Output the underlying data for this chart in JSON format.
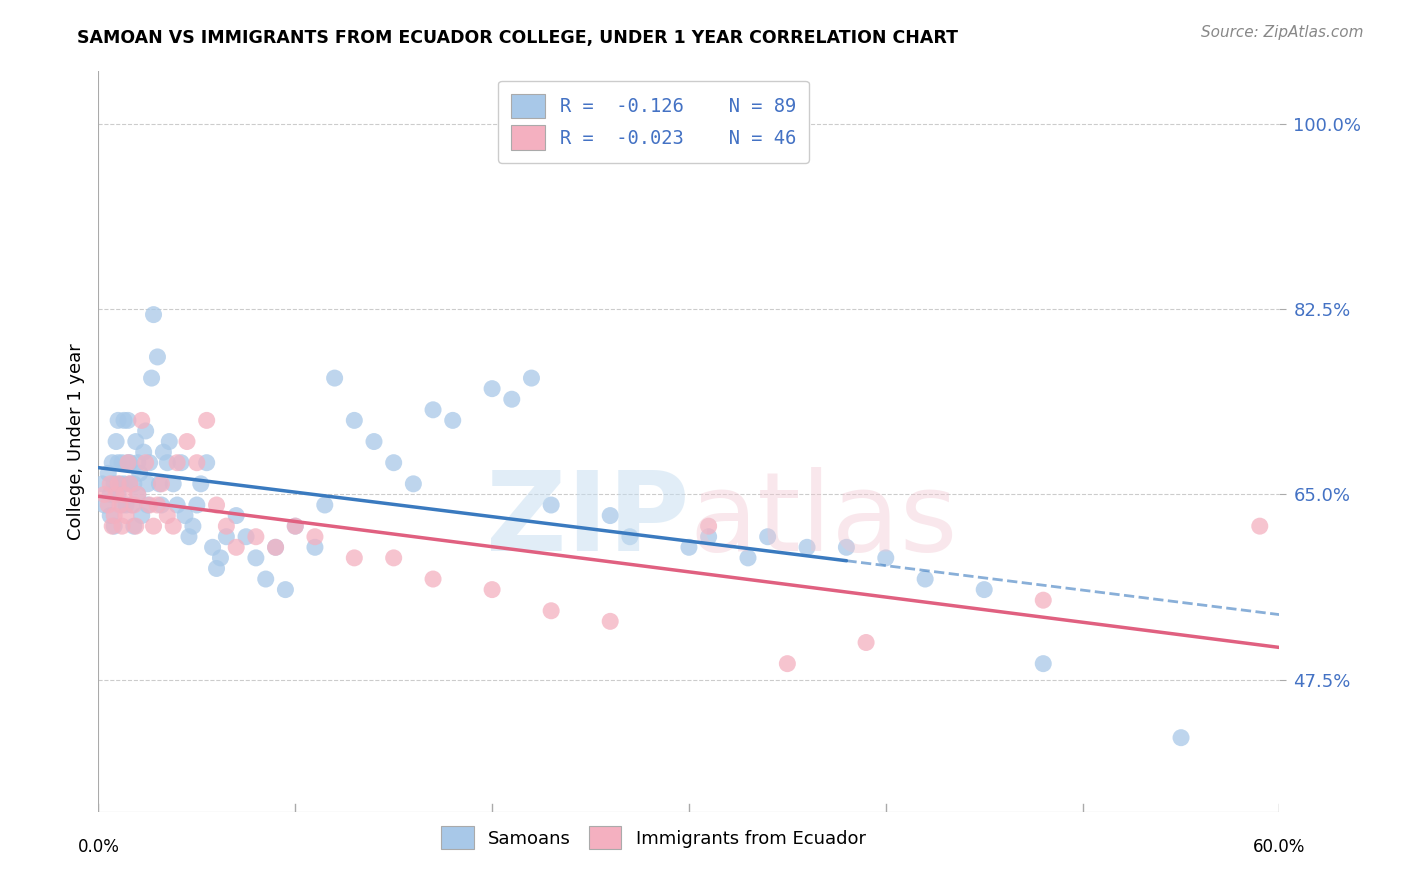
{
  "title": "SAMOAN VS IMMIGRANTS FROM ECUADOR COLLEGE, UNDER 1 YEAR CORRELATION CHART",
  "source": "Source: ZipAtlas.com",
  "ylabel": "College, Under 1 year",
  "xlim": [
    0.0,
    0.6
  ],
  "ylim": [
    0.35,
    1.05
  ],
  "ytick_vals": [
    0.475,
    0.65,
    0.825,
    1.0
  ],
  "ytick_labels": [
    "47.5%",
    "65.0%",
    "82.5%",
    "100.0%"
  ],
  "xtick_left_label": "0.0%",
  "xtick_right_label": "60.0%",
  "blue_scatter_color": "#a8c8e8",
  "pink_scatter_color": "#f4b0c0",
  "blue_line_color": "#3a7abf",
  "pink_line_color": "#e06080",
  "grid_color": "#cccccc",
  "right_label_color": "#4472c4",
  "legend_r1": "R =  -0.126    N = 89",
  "legend_r2": "R =  -0.023    N = 46",
  "bottom_legend1": "Samoans",
  "bottom_legend2": "Immigrants from Ecuador",
  "samoan_x": [
    0.002,
    0.003,
    0.005,
    0.006,
    0.006,
    0.007,
    0.008,
    0.008,
    0.009,
    0.01,
    0.01,
    0.01,
    0.011,
    0.012,
    0.012,
    0.013,
    0.013,
    0.014,
    0.015,
    0.015,
    0.016,
    0.016,
    0.017,
    0.018,
    0.018,
    0.019,
    0.02,
    0.02,
    0.021,
    0.022,
    0.023,
    0.024,
    0.025,
    0.025,
    0.026,
    0.027,
    0.028,
    0.03,
    0.031,
    0.032,
    0.033,
    0.035,
    0.036,
    0.038,
    0.04,
    0.042,
    0.044,
    0.046,
    0.048,
    0.05,
    0.052,
    0.055,
    0.058,
    0.06,
    0.062,
    0.065,
    0.07,
    0.075,
    0.08,
    0.085,
    0.09,
    0.095,
    0.1,
    0.11,
    0.115,
    0.12,
    0.13,
    0.14,
    0.15,
    0.16,
    0.17,
    0.18,
    0.2,
    0.21,
    0.22,
    0.23,
    0.26,
    0.27,
    0.3,
    0.31,
    0.33,
    0.34,
    0.36,
    0.38,
    0.4,
    0.42,
    0.45,
    0.48,
    0.55
  ],
  "samoan_y": [
    0.66,
    0.64,
    0.67,
    0.65,
    0.63,
    0.68,
    0.66,
    0.62,
    0.7,
    0.68,
    0.65,
    0.72,
    0.66,
    0.64,
    0.68,
    0.72,
    0.66,
    0.64,
    0.68,
    0.72,
    0.66,
    0.68,
    0.64,
    0.62,
    0.66,
    0.7,
    0.68,
    0.65,
    0.67,
    0.63,
    0.69,
    0.71,
    0.66,
    0.64,
    0.68,
    0.76,
    0.82,
    0.78,
    0.66,
    0.64,
    0.69,
    0.68,
    0.7,
    0.66,
    0.64,
    0.68,
    0.63,
    0.61,
    0.62,
    0.64,
    0.66,
    0.68,
    0.6,
    0.58,
    0.59,
    0.61,
    0.63,
    0.61,
    0.59,
    0.57,
    0.6,
    0.56,
    0.62,
    0.6,
    0.64,
    0.76,
    0.72,
    0.7,
    0.68,
    0.66,
    0.73,
    0.72,
    0.75,
    0.74,
    0.76,
    0.64,
    0.63,
    0.61,
    0.6,
    0.61,
    0.59,
    0.61,
    0.6,
    0.6,
    0.59,
    0.57,
    0.56,
    0.49,
    0.42
  ],
  "ecuador_x": [
    0.003,
    0.005,
    0.006,
    0.007,
    0.008,
    0.009,
    0.01,
    0.011,
    0.012,
    0.013,
    0.014,
    0.015,
    0.016,
    0.018,
    0.019,
    0.02,
    0.022,
    0.024,
    0.026,
    0.028,
    0.03,
    0.032,
    0.035,
    0.038,
    0.04,
    0.045,
    0.05,
    0.055,
    0.06,
    0.065,
    0.07,
    0.08,
    0.09,
    0.1,
    0.11,
    0.13,
    0.15,
    0.17,
    0.2,
    0.23,
    0.26,
    0.31,
    0.35,
    0.39,
    0.48,
    0.59
  ],
  "ecuador_y": [
    0.65,
    0.64,
    0.66,
    0.62,
    0.63,
    0.65,
    0.66,
    0.64,
    0.62,
    0.65,
    0.63,
    0.68,
    0.66,
    0.64,
    0.62,
    0.65,
    0.72,
    0.68,
    0.64,
    0.62,
    0.64,
    0.66,
    0.63,
    0.62,
    0.68,
    0.7,
    0.68,
    0.72,
    0.64,
    0.62,
    0.6,
    0.61,
    0.6,
    0.62,
    0.61,
    0.59,
    0.59,
    0.57,
    0.56,
    0.54,
    0.53,
    0.62,
    0.49,
    0.51,
    0.55,
    0.62
  ]
}
